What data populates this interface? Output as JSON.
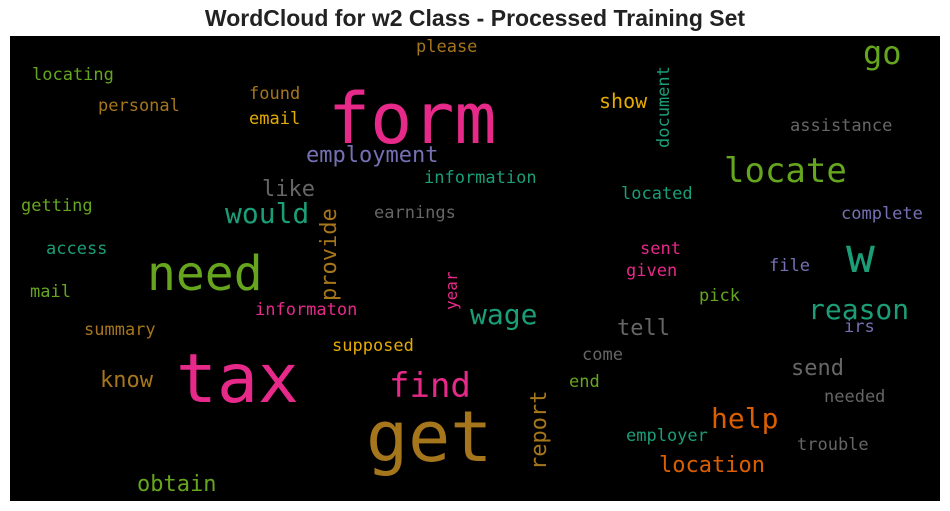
{
  "title": "WordCloud for w2 Class - Processed Training Set",
  "colors": {
    "background": "#000000",
    "pink": "#e7298a",
    "olive": "#a6761d",
    "green": "#66a61e",
    "teal": "#1b9e77",
    "gray": "#666666",
    "purple": "#7570b3",
    "orange": "#d95f02",
    "gold": "#e6ab02"
  },
  "words": [
    {
      "text": "form",
      "color": "pink"
    },
    {
      "text": "tax",
      "color": "pink"
    },
    {
      "text": "get",
      "color": "olive"
    },
    {
      "text": "need",
      "color": "green"
    },
    {
      "text": "w",
      "color": "teal"
    },
    {
      "text": "locate",
      "color": "green"
    },
    {
      "text": "find",
      "color": "pink"
    },
    {
      "text": "go",
      "color": "green"
    },
    {
      "text": "wage",
      "color": "teal"
    },
    {
      "text": "reason",
      "color": "teal"
    },
    {
      "text": "help",
      "color": "orange"
    },
    {
      "text": "employment",
      "color": "purple"
    },
    {
      "text": "would",
      "color": "teal"
    },
    {
      "text": "location",
      "color": "orange"
    },
    {
      "text": "provide",
      "color": "olive"
    },
    {
      "text": "report",
      "color": "olive"
    },
    {
      "text": "obtain",
      "color": "green"
    },
    {
      "text": "know",
      "color": "olive"
    },
    {
      "text": "tell",
      "color": "gray"
    },
    {
      "text": "send",
      "color": "gray"
    },
    {
      "text": "like",
      "color": "gray"
    },
    {
      "text": "show",
      "color": "gold"
    },
    {
      "text": "document",
      "color": "teal"
    },
    {
      "text": "please",
      "color": "olive"
    },
    {
      "text": "locating",
      "color": "green"
    },
    {
      "text": "personal",
      "color": "olive"
    },
    {
      "text": "found",
      "color": "olive"
    },
    {
      "text": "email",
      "color": "gold"
    },
    {
      "text": "assistance",
      "color": "gray"
    },
    {
      "text": "information",
      "color": "teal"
    },
    {
      "text": "located",
      "color": "teal"
    },
    {
      "text": "getting",
      "color": "green"
    },
    {
      "text": "earnings",
      "color": "gray"
    },
    {
      "text": "complete",
      "color": "purple"
    },
    {
      "text": "access",
      "color": "teal"
    },
    {
      "text": "sent",
      "color": "pink"
    },
    {
      "text": "given",
      "color": "pink"
    },
    {
      "text": "file",
      "color": "purple"
    },
    {
      "text": "mail",
      "color": "green"
    },
    {
      "text": "year",
      "color": "pink"
    },
    {
      "text": "pick",
      "color": "green"
    },
    {
      "text": "informaton",
      "color": "pink"
    },
    {
      "text": "irs",
      "color": "purple"
    },
    {
      "text": "summary",
      "color": "olive"
    },
    {
      "text": "supposed",
      "color": "gold"
    },
    {
      "text": "come",
      "color": "gray"
    },
    {
      "text": "end",
      "color": "green"
    },
    {
      "text": "needed",
      "color": "gray"
    },
    {
      "text": "employer",
      "color": "teal"
    },
    {
      "text": "trouble",
      "color": "gray"
    }
  ]
}
